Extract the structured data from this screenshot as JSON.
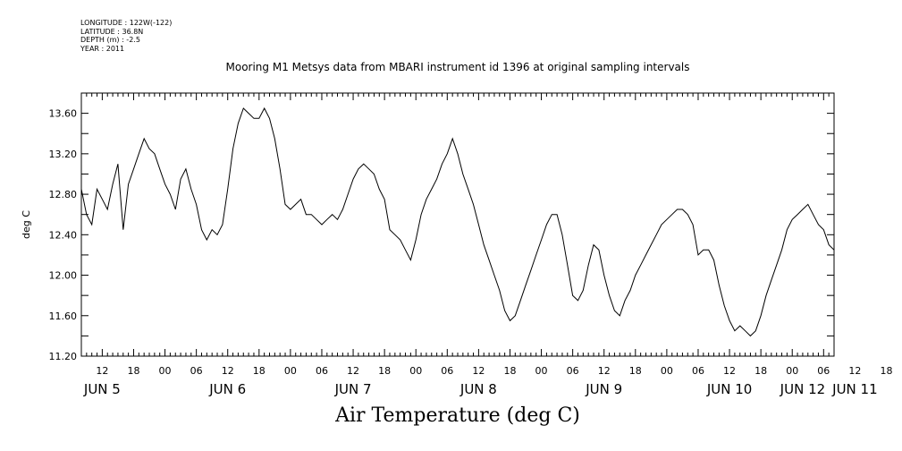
{
  "header_meta": {
    "longitude": "LONGITUDE : 122W(-122)",
    "latitude": "LATITUDE : 36.8N",
    "depth": "DEPTH (m) : -2.5",
    "year": "YEAR : 2011"
  },
  "chart_data": {
    "type": "line",
    "title": "Mooring M1 Metsys data from MBARI instrument id 1396 at original sampling intervals",
    "xlabel": "Air Temperature (deg C)",
    "ylabel": "deg C",
    "ylim": [
      11.2,
      13.8
    ],
    "yticks": [
      "11.20",
      "11.60",
      "12.00",
      "12.40",
      "12.80",
      "13.20",
      "13.60"
    ],
    "xlim_hours": [
      8,
      152
    ],
    "hour_ticks": [
      "12",
      "18",
      "00",
      "06",
      "12",
      "18",
      "00",
      "06",
      "12",
      "18",
      "00",
      "06",
      "12",
      "18",
      "00",
      "06",
      "12",
      "18",
      "00",
      "06",
      "12",
      "18",
      "00",
      "06",
      "12",
      "18",
      "00",
      "06"
    ],
    "day_labels": [
      "JUN  5",
      "JUN  6",
      "JUN  7",
      "JUN  8",
      "JUN  9",
      "JUN 10",
      "JUN 11",
      "JUN 12"
    ],
    "grid": false,
    "series": [
      {
        "values_hint": "approximate readings at key points",
        "x": [
          8,
          9,
          10,
          11,
          12,
          13,
          14,
          15,
          16,
          17,
          18,
          19,
          20,
          21,
          22,
          23,
          24,
          25,
          26,
          27,
          28,
          29,
          30,
          31,
          32,
          33,
          34,
          35,
          36,
          37,
          38,
          39,
          40,
          41,
          42,
          43,
          44,
          45,
          46,
          47,
          48,
          49,
          50,
          51,
          52,
          53,
          54,
          55,
          56,
          57,
          58,
          59,
          60,
          61,
          62,
          63,
          64,
          65,
          66,
          67,
          68,
          69,
          70,
          71,
          72,
          73,
          74,
          75,
          76,
          77,
          78,
          79,
          80,
          81,
          82,
          83,
          84,
          85,
          86,
          87,
          88,
          89,
          90,
          91,
          92,
          93,
          94,
          95,
          96,
          97,
          98,
          99,
          100,
          101,
          102,
          103,
          104,
          105,
          106,
          107,
          108,
          109,
          110,
          111,
          112,
          113,
          114,
          115,
          116,
          117,
          118,
          119,
          120,
          121,
          122,
          123,
          124,
          125,
          126,
          127,
          128,
          129,
          130,
          131,
          132,
          133,
          134,
          135,
          136,
          137,
          138,
          139,
          140,
          141,
          142,
          143,
          144,
          145,
          146,
          147,
          148,
          149,
          150,
          151,
          152
        ],
        "values": [
          12.85,
          12.6,
          12.5,
          12.85,
          12.75,
          12.65,
          12.9,
          13.1,
          12.45,
          12.9,
          13.05,
          13.2,
          13.35,
          13.25,
          13.2,
          13.05,
          12.9,
          12.8,
          12.65,
          12.95,
          13.05,
          12.85,
          12.7,
          12.45,
          12.35,
          12.45,
          12.4,
          12.5,
          12.85,
          13.25,
          13.5,
          13.65,
          13.6,
          13.55,
          13.55,
          13.65,
          13.55,
          13.35,
          13.05,
          12.7,
          12.65,
          12.7,
          12.75,
          12.6,
          12.6,
          12.55,
          12.5,
          12.55,
          12.6,
          12.55,
          12.65,
          12.8,
          12.95,
          13.05,
          13.1,
          13.05,
          13.0,
          12.85,
          12.75,
          12.45,
          12.4,
          12.35,
          12.25,
          12.15,
          12.35,
          12.6,
          12.75,
          12.85,
          12.95,
          13.1,
          13.2,
          13.35,
          13.2,
          13.0,
          12.85,
          12.7,
          12.5,
          12.3,
          12.15,
          12.0,
          11.85,
          11.65,
          11.55,
          11.6,
          11.75,
          11.9,
          12.05,
          12.2,
          12.35,
          12.5,
          12.6,
          12.6,
          12.4,
          12.1,
          11.8,
          11.75,
          11.85,
          12.1,
          12.3,
          12.25,
          12.0,
          11.8,
          11.65,
          11.6,
          11.75,
          11.85,
          12.0,
          12.1,
          12.2,
          12.3,
          12.4,
          12.5,
          12.55,
          12.6,
          12.65,
          12.65,
          12.6,
          12.5,
          12.2,
          12.25,
          12.25,
          12.15,
          11.9,
          11.7,
          11.55,
          11.45,
          11.5,
          11.45,
          11.4,
          11.45,
          11.6,
          11.8,
          11.95,
          12.1,
          12.25,
          12.45,
          12.55,
          12.6,
          12.65,
          12.7,
          12.6,
          12.5,
          12.45,
          12.3,
          12.25
        ]
      }
    ]
  }
}
